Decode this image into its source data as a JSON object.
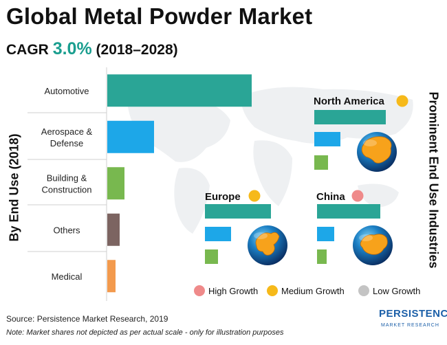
{
  "title": "Global Metal Powder Market",
  "cagr": {
    "label": "CAGR",
    "value": "3.0%",
    "period": "(2018–2028)"
  },
  "left_axis_title": "By End Use (2018)",
  "right_axis_title": "Prominent End Use Industries",
  "colors": {
    "teal": "#2aa596",
    "blue": "#1da7e8",
    "green": "#78b84f",
    "brown": "#7c6461",
    "orange": "#f39a4d",
    "high": "#ef8a8a",
    "medium": "#f6b91a",
    "low": "#c4c4c4",
    "accent": "#1a9e8f"
  },
  "chart_data": [
    {
      "type": "bar",
      "orientation": "horizontal",
      "title": "",
      "ylabel": "By End Use (2018)",
      "categories": [
        "Automotive",
        "Aerospace &\nDefense",
        "Building &\nConstruction",
        "Others",
        "Medical"
      ],
      "series": [
        {
          "values": [
            210,
            68,
            25,
            18,
            12
          ]
        }
      ],
      "bar_colors": [
        "#2aa596",
        "#1da7e8",
        "#78b84f",
        "#7c6461",
        "#f39a4d"
      ],
      "xlim": [
        0,
        290
      ],
      "grid": false
    },
    {
      "type": "bar",
      "orientation": "horizontal",
      "title": "North America",
      "growth": "Medium Growth",
      "values": [
        104,
        38,
        20
      ],
      "bar_colors": [
        "#2aa596",
        "#1da7e8",
        "#78b84f"
      ],
      "xlim": [
        0,
        140
      ]
    },
    {
      "type": "bar",
      "orientation": "horizontal",
      "title": "Europe",
      "growth": "Medium Growth",
      "values": [
        96,
        38,
        19
      ],
      "bar_colors": [
        "#2aa596",
        "#1da7e8",
        "#78b84f"
      ],
      "xlim": [
        0,
        140
      ]
    },
    {
      "type": "bar",
      "orientation": "horizontal",
      "title": "China",
      "growth": "High Growth",
      "values": [
        92,
        25,
        14
      ],
      "bar_colors": [
        "#2aa596",
        "#1da7e8",
        "#78b84f"
      ],
      "xlim": [
        0,
        140
      ]
    }
  ],
  "legend": [
    {
      "label": "High Growth",
      "color": "#ef8a8a"
    },
    {
      "label": "Medium Growth",
      "color": "#f6b91a"
    },
    {
      "label": "Low Growth",
      "color": "#c4c4c4"
    }
  ],
  "source": "Source: Persistence Market Research, 2019",
  "note": "Note: Market shares not depicted as per actual scale - only for illustration purposes",
  "logo": {
    "line1": "PERSISTENCE",
    "line2": "MARKET RESEARCH"
  }
}
